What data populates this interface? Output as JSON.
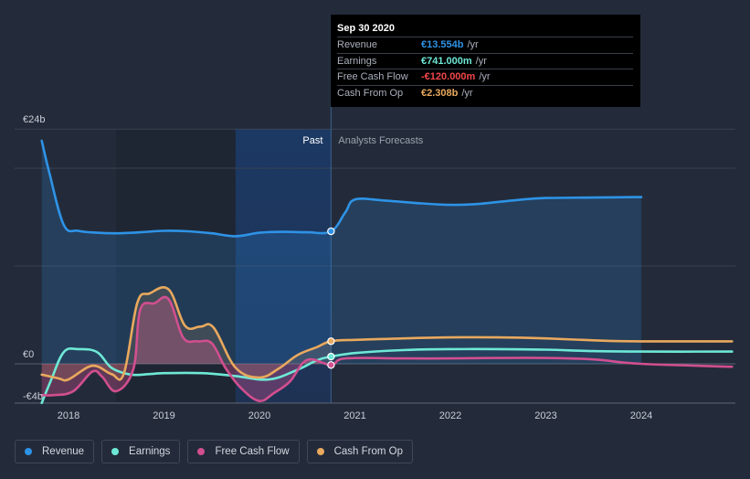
{
  "tooltip": {
    "date": "Sep 30 2020",
    "rows": [
      {
        "label": "Revenue",
        "value": "€13.554b",
        "unit": "/yr",
        "color": "#2e93e6"
      },
      {
        "label": "Earnings",
        "value": "€741.000m",
        "unit": "/yr",
        "color": "#6ee8d6"
      },
      {
        "label": "Free Cash Flow",
        "value": "-€120.000m",
        "unit": "/yr",
        "color": "#f0474b"
      },
      {
        "label": "Cash From Op",
        "value": "€2.308b",
        "unit": "/yr",
        "color": "#e9a95e"
      }
    ]
  },
  "legend": [
    {
      "label": "Revenue",
      "color": "#2e93e6"
    },
    {
      "label": "Earnings",
      "color": "#6ee8d6"
    },
    {
      "label": "Free Cash Flow",
      "color": "#d14f8f"
    },
    {
      "label": "Cash From Op",
      "color": "#e9a95e"
    }
  ],
  "chart_data": {
    "type": "line",
    "y_ticks": [
      {
        "label": "€24b",
        "value": 24
      },
      {
        "label": "€0",
        "value": 0
      },
      {
        "label": "-€4b",
        "value": -4
      }
    ],
    "ylim": [
      -4.5,
      24
    ],
    "xlim": [
      2017.55,
      2024.95
    ],
    "x_ticks": [
      2018,
      2019,
      2020,
      2021,
      2022,
      2023,
      2024
    ],
    "past_label": "Past",
    "forecast_label": "Analysts Forecasts",
    "past_end": 2020.75,
    "highlight_start": 2019.75,
    "past_band_start": 2018.5,
    "grid": true,
    "series": [
      {
        "name": "Revenue",
        "color": "#2e93e6",
        "area": true,
        "points": [
          [
            2017.72,
            22.8
          ],
          [
            2017.8,
            19.5
          ],
          [
            2017.95,
            14.2
          ],
          [
            2018.1,
            13.6
          ],
          [
            2018.3,
            13.4
          ],
          [
            2018.5,
            13.35
          ],
          [
            2018.75,
            13.45
          ],
          [
            2019.0,
            13.6
          ],
          [
            2019.25,
            13.55
          ],
          [
            2019.5,
            13.35
          ],
          [
            2019.75,
            13.05
          ],
          [
            2020.0,
            13.4
          ],
          [
            2020.25,
            13.5
          ],
          [
            2020.5,
            13.45
          ],
          [
            2020.75,
            13.55
          ],
          [
            2020.9,
            15.5
          ],
          [
            2021.0,
            16.8
          ],
          [
            2021.3,
            16.7
          ],
          [
            2021.7,
            16.4
          ],
          [
            2022.0,
            16.25
          ],
          [
            2022.3,
            16.35
          ],
          [
            2022.7,
            16.75
          ],
          [
            2023.0,
            16.95
          ],
          [
            2023.5,
            17.0
          ],
          [
            2024.0,
            17.05
          ]
        ]
      },
      {
        "name": "Earnings",
        "color": "#6ee8d6",
        "area": false,
        "points": [
          [
            2017.72,
            -4.0
          ],
          [
            2017.82,
            -1.6
          ],
          [
            2017.95,
            1.2
          ],
          [
            2018.1,
            1.5
          ],
          [
            2018.3,
            1.2
          ],
          [
            2018.45,
            -0.4
          ],
          [
            2018.65,
            -1.1
          ],
          [
            2018.85,
            -1.05
          ],
          [
            2019.0,
            -0.95
          ],
          [
            2019.4,
            -0.95
          ],
          [
            2019.75,
            -1.25
          ],
          [
            2020.1,
            -1.6
          ],
          [
            2020.4,
            -0.6
          ],
          [
            2020.6,
            0.35
          ],
          [
            2020.75,
            0.74
          ],
          [
            2021.0,
            1.1
          ],
          [
            2021.5,
            1.4
          ],
          [
            2022.0,
            1.5
          ],
          [
            2022.5,
            1.5
          ],
          [
            2023.0,
            1.45
          ],
          [
            2023.5,
            1.3
          ],
          [
            2024.0,
            1.25
          ],
          [
            2024.95,
            1.25
          ]
        ]
      },
      {
        "name": "Free Cash Flow",
        "color": "#d14f8f",
        "area": true,
        "points": [
          [
            2017.72,
            -3.2
          ],
          [
            2017.85,
            -3.2
          ],
          [
            2018.05,
            -2.8
          ],
          [
            2018.25,
            -0.8
          ],
          [
            2018.35,
            -1.3
          ],
          [
            2018.5,
            -2.8
          ],
          [
            2018.68,
            -0.5
          ],
          [
            2018.75,
            5.5
          ],
          [
            2018.9,
            6.2
          ],
          [
            2019.05,
            6.6
          ],
          [
            2019.2,
            2.7
          ],
          [
            2019.35,
            2.3
          ],
          [
            2019.5,
            2.1
          ],
          [
            2019.65,
            -0.5
          ],
          [
            2019.82,
            -2.6
          ],
          [
            2020.0,
            -3.8
          ],
          [
            2020.15,
            -3.0
          ],
          [
            2020.32,
            -1.8
          ],
          [
            2020.5,
            0.4
          ],
          [
            2020.75,
            -0.12
          ],
          [
            2020.9,
            0.55
          ],
          [
            2021.5,
            0.55
          ],
          [
            2022.0,
            0.55
          ],
          [
            2022.5,
            0.6
          ],
          [
            2023.0,
            0.6
          ],
          [
            2023.5,
            0.45
          ],
          [
            2024.0,
            0.0
          ],
          [
            2024.95,
            -0.3
          ]
        ]
      },
      {
        "name": "Cash From Op",
        "color": "#e9a95e",
        "area": true,
        "points": [
          [
            2017.72,
            -1.1
          ],
          [
            2017.9,
            -1.5
          ],
          [
            2018.0,
            -1.6
          ],
          [
            2018.25,
            -0.2
          ],
          [
            2018.45,
            -1.05
          ],
          [
            2018.58,
            -1.0
          ],
          [
            2018.72,
            6.2
          ],
          [
            2018.85,
            7.2
          ],
          [
            2019.05,
            7.6
          ],
          [
            2019.22,
            3.9
          ],
          [
            2019.38,
            3.8
          ],
          [
            2019.52,
            3.7
          ],
          [
            2019.75,
            -0.4
          ],
          [
            2020.0,
            -1.4
          ],
          [
            2020.2,
            -0.5
          ],
          [
            2020.4,
            0.9
          ],
          [
            2020.6,
            1.7
          ],
          [
            2020.75,
            2.31
          ],
          [
            2021.0,
            2.45
          ],
          [
            2021.5,
            2.6
          ],
          [
            2022.0,
            2.7
          ],
          [
            2022.5,
            2.7
          ],
          [
            2023.0,
            2.6
          ],
          [
            2023.5,
            2.4
          ],
          [
            2024.0,
            2.3
          ],
          [
            2024.95,
            2.3
          ]
        ]
      }
    ]
  }
}
